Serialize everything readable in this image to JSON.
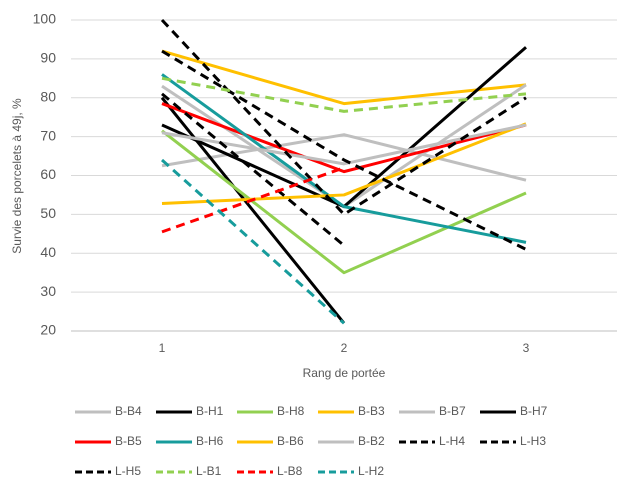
{
  "chart_data": {
    "type": "line",
    "x_label": "Rang de portée",
    "y_label": "Survie des porcelets à 49j, %",
    "categories": [
      "1",
      "2",
      "3"
    ],
    "ylim": [
      20,
      100
    ],
    "yticks": [
      20,
      30,
      40,
      50,
      60,
      70,
      80,
      90,
      100
    ],
    "grid": true,
    "series": [
      {
        "name": "B-B4",
        "color": "#bfbfbf",
        "dashed": false,
        "values": [
          62.5,
          70.5,
          58.8
        ]
      },
      {
        "name": "B-H1",
        "color": "#000000",
        "dashed": false,
        "values": [
          80,
          22,
          null
        ]
      },
      {
        "name": "B-H8",
        "color": "#92d050",
        "dashed": false,
        "values": [
          71.5,
          35,
          55.5
        ]
      },
      {
        "name": "B-B3",
        "color": "#ffc000",
        "dashed": false,
        "values": [
          92,
          78.5,
          83.3
        ]
      },
      {
        "name": "B-B7",
        "color": "#bfbfbf",
        "dashed": false,
        "values": [
          83,
          52,
          83.3
        ]
      },
      {
        "name": "B-H7",
        "color": "#000000",
        "dashed": false,
        "values": [
          73,
          52,
          93
        ]
      },
      {
        "name": "B-B5",
        "color": "#ff0000",
        "dashed": false,
        "values": [
          78.5,
          61,
          73
        ]
      },
      {
        "name": "B-H6",
        "color": "#179c9c",
        "dashed": false,
        "values": [
          86,
          52,
          42.8
        ]
      },
      {
        "name": "B-B6",
        "color": "#ffc000",
        "dashed": false,
        "values": [
          52.8,
          55,
          73.3
        ]
      },
      {
        "name": "B-B2",
        "color": "#bfbfbf",
        "dashed": false,
        "values": [
          71,
          63,
          73
        ]
      },
      {
        "name": "L-H4",
        "color": "#000000",
        "dashed": true,
        "values": [
          100,
          50,
          80
        ]
      },
      {
        "name": "L-H3",
        "color": "#000000",
        "dashed": true,
        "values": [
          92,
          64,
          41
        ]
      },
      {
        "name": "L-H5",
        "color": "#000000",
        "dashed": true,
        "values": [
          81,
          42,
          null
        ]
      },
      {
        "name": "L-B1",
        "color": "#92d050",
        "dashed": true,
        "values": [
          85,
          76.5,
          81
        ]
      },
      {
        "name": "L-B8",
        "color": "#ff0000",
        "dashed": true,
        "values": [
          45.5,
          62,
          null
        ]
      },
      {
        "name": "L-H2",
        "color": "#179c9c",
        "dashed": true,
        "values": [
          64,
          22,
          null
        ]
      }
    ]
  }
}
